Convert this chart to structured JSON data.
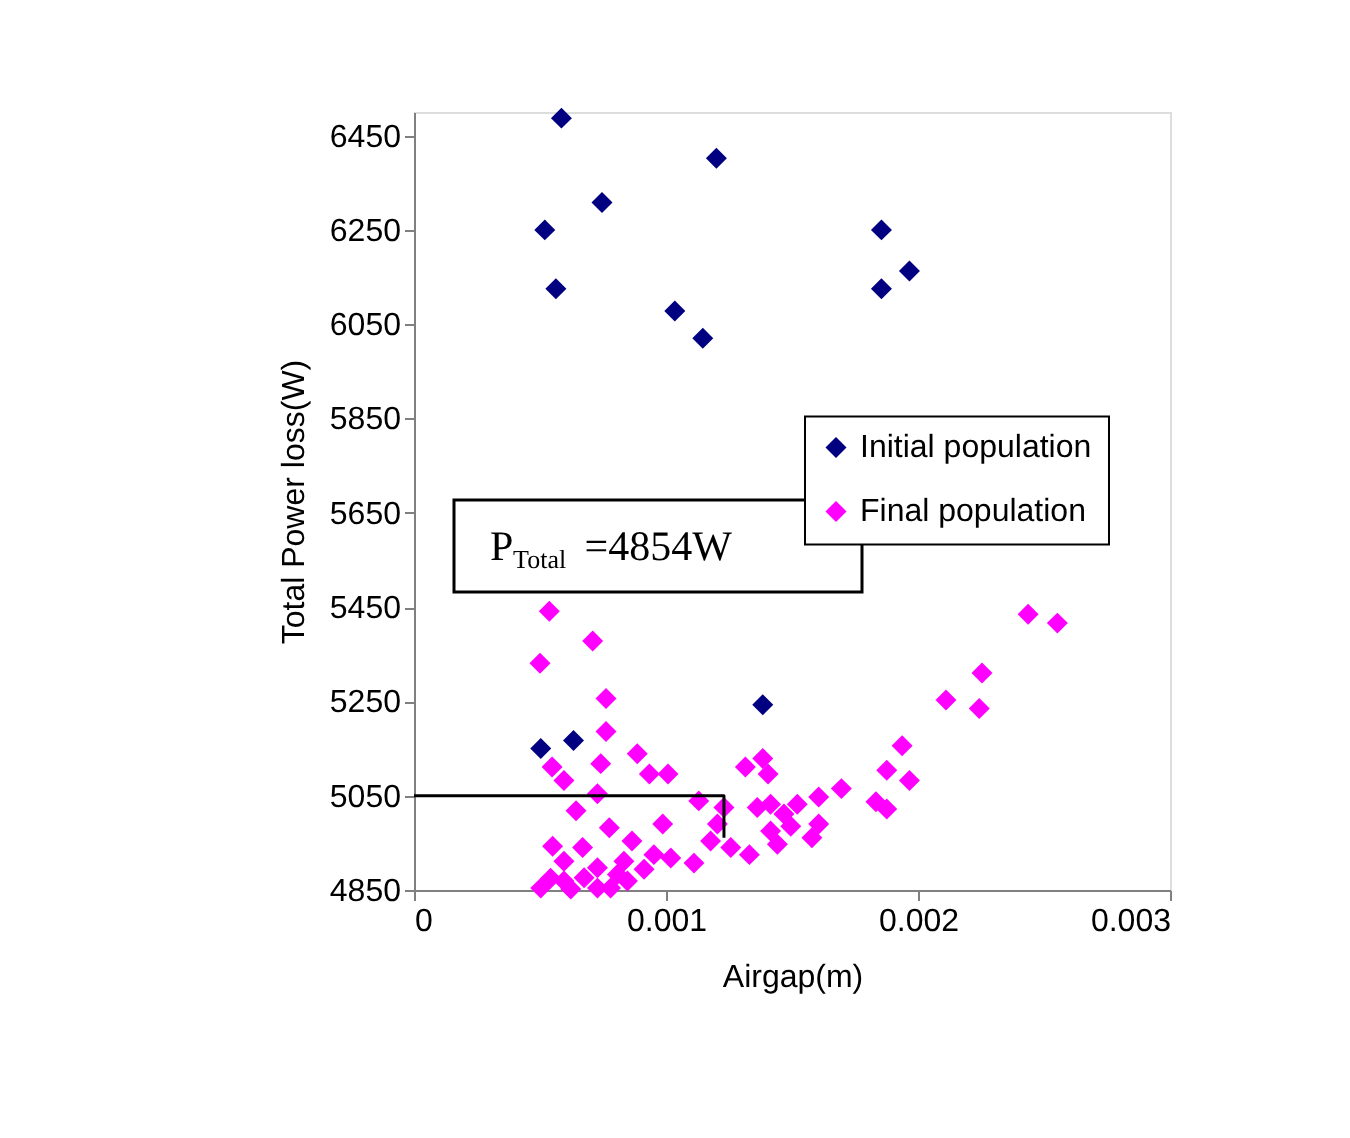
{
  "chart_data": {
    "type": "scatter",
    "xlabel": "Airgap(m)",
    "ylabel": "Total Power loss(W)",
    "xlim": [
      0,
      0.003
    ],
    "xticks": [
      0,
      0.001,
      0.002,
      0.003
    ],
    "ylim": [
      4850,
      6500
    ],
    "yticks": [
      4850,
      5050,
      5250,
      5450,
      5650,
      5850,
      6050,
      6250,
      6450
    ],
    "marker": "diamond",
    "legend": "right",
    "grid": false,
    "annotations": [
      "P$_{Total}$ =4854W"
    ],
    "series": [
      {
        "type": "line",
        "marker": "none",
        "color": "#000000",
        "x": [
          0,
          0.00123,
          0.00123
        ],
        "values": [
          5050,
          5050,
          4961
        ]
      },
      {
        "name": "Initial population",
        "color": "#000080",
        "x": [
          0.000585,
          0.0012,
          0.000746,
          0.000519,
          0.000563,
          0.001035,
          0.001146,
          0.001855,
          0.001855,
          0.001966,
          0.000503,
          0.000633,
          0.001384
        ],
        "values": [
          6487,
          6402,
          6308,
          6250,
          6125,
          6078,
          6020,
          6250,
          6125,
          6163,
          5150,
          5167,
          5243
        ]
      },
      {
        "name": "Final population",
        "color": "#ff00ff",
        "x": [
          0.000537,
          0.0005,
          0.000709,
          0.000762,
          0.000762,
          0.002437,
          0.002553,
          0.002254,
          0.002243,
          0.002111,
          0.001937,
          0.001876,
          0.001966,
          0.001833,
          0.001876,
          0.001696,
          0.001606,
          0.001521,
          0.001606,
          0.001579,
          0.001384,
          0.001315,
          0.001405,
          0.001415,
          0.001362,
          0.001468,
          0.001495,
          0.001415,
          0.001442,
          0.001331,
          0.001257,
          0.00123,
          0.001204,
          0.001177,
          0.001111,
          0.001019,
          0.00113,
          0.001008,
          0.000934,
          0.000886,
          0.000987,
          0.000865,
          0.000952,
          0.000913,
          0.000833,
          0.000775,
          0.000728,
          0.000741,
          0.000643,
          0.000548,
          0.000595,
          0.00055,
          0.000669,
          0.000595,
          0.000728,
          0.000542,
          0.000503,
          0.000622,
          0.000728,
          0.000807,
          0.00078,
          0.000595,
          0.000675,
          0.000847
        ],
        "values": [
          5441,
          5331,
          5378,
          5256,
          5186,
          5435,
          5416,
          5310,
          5235,
          5253,
          5156,
          5104,
          5082,
          5037,
          5022,
          5065,
          5047,
          5032,
          4990,
          4961,
          5129,
          5111,
          5096,
          5032,
          5025,
          5011,
          4985,
          4975,
          4947,
          4925,
          4940,
          5025,
          4990,
          4954,
          4907,
          4918,
          5039,
          5096,
          5096,
          5139,
          4990,
          4954,
          4925,
          4894,
          4911,
          4982,
          5054,
          5118,
          5018,
          5111,
          5082,
          4943,
          4940,
          4911,
          4897,
          4875,
          4854,
          4852,
          4854,
          4883,
          4854,
          4869,
          4876,
          4869
        ]
      }
    ]
  }
}
